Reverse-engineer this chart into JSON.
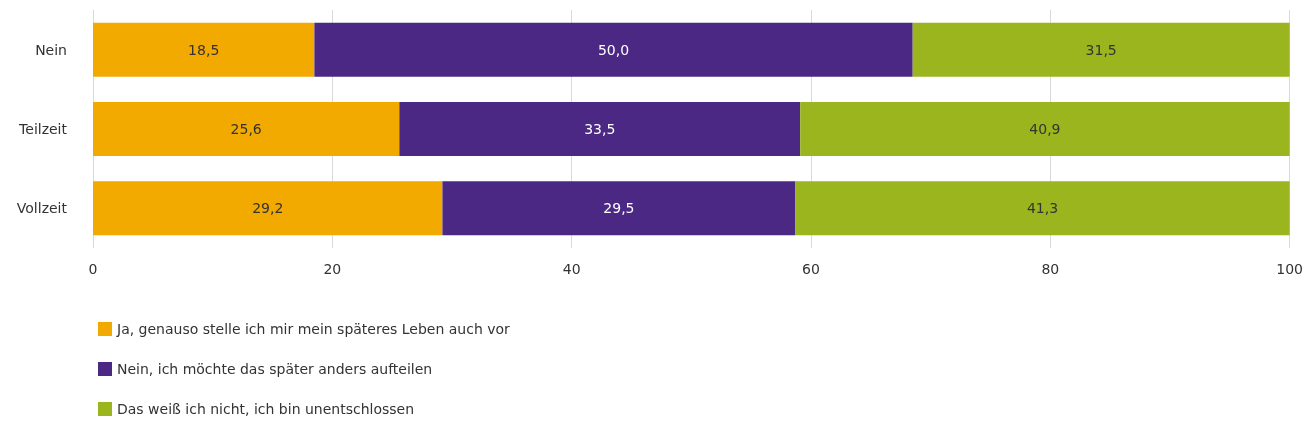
{
  "chart_data": {
    "type": "bar",
    "orientation": "horizontal",
    "stacked": true,
    "categories": [
      "Nein",
      "Teilzeit",
      "Vollzeit"
    ],
    "series": [
      {
        "name": "Ja, genauso stelle ich mir mein späteres Leben auch vor",
        "color": "#f2a900",
        "values": [
          18.5,
          25.6,
          29.2
        ],
        "value_labels": [
          "18,5",
          "25,6",
          "29,2"
        ]
      },
      {
        "name": "Nein, ich möchte das später anders aufteilen",
        "color": "#4b2884",
        "values": [
          50.0,
          33.5,
          29.5
        ],
        "value_labels": [
          "50,0",
          "33,5",
          "29,5"
        ]
      },
      {
        "name": "Das weiß ich nicht, ich bin unentschlossen",
        "color": "#9bb51e",
        "values": [
          31.5,
          40.9,
          41.3
        ],
        "value_labels": [
          "31,5",
          "40,9",
          "41,3"
        ]
      }
    ],
    "xlim": [
      0,
      100
    ],
    "xticks": [
      0,
      20,
      40,
      60,
      80,
      100
    ],
    "grid": "x",
    "legend": "bottom left"
  }
}
